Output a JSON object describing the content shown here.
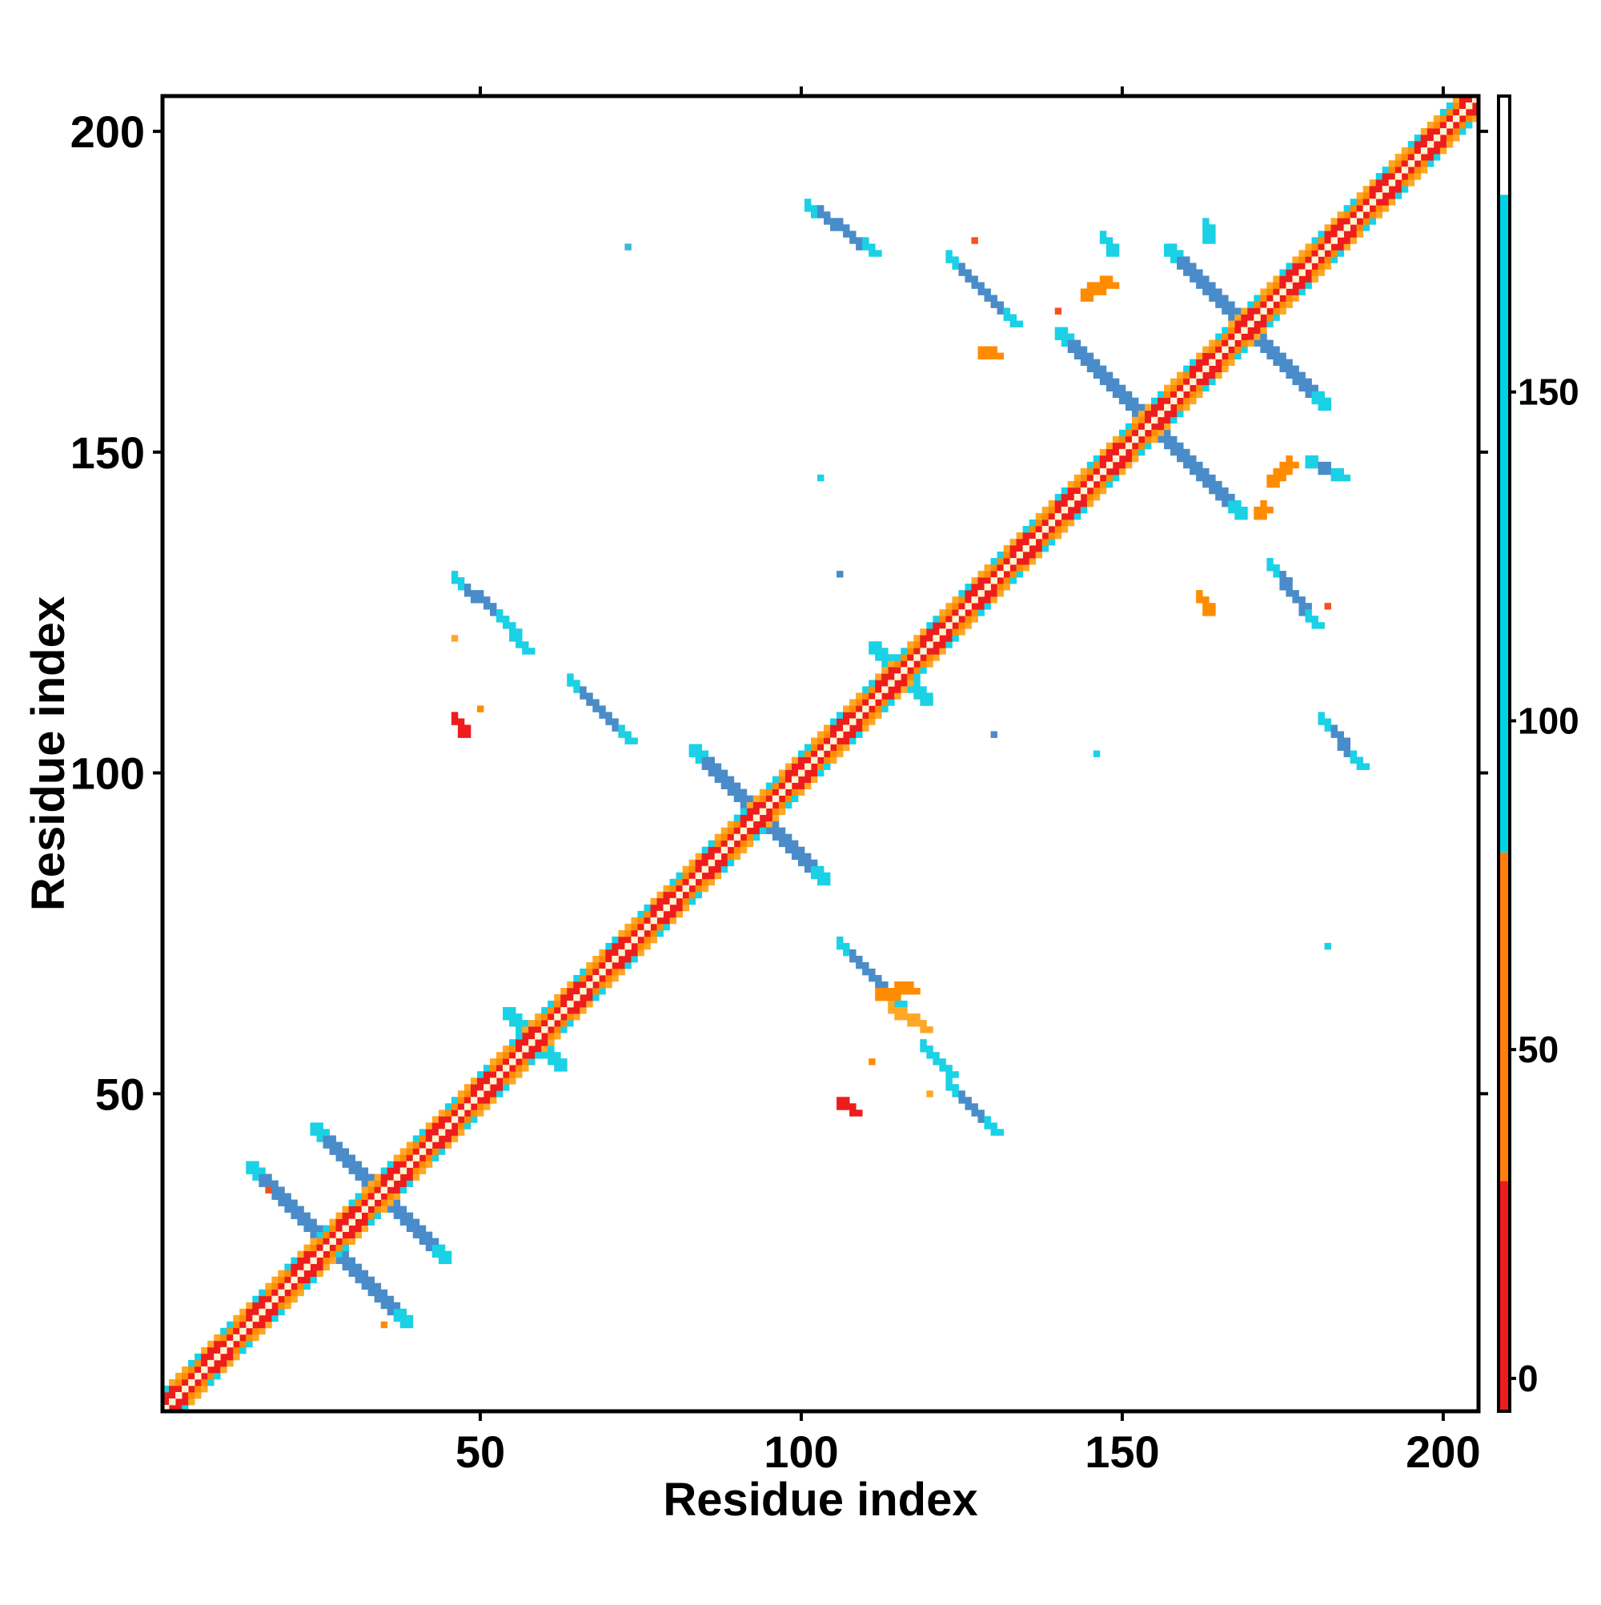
{
  "chart_data": {
    "type": "heatmap",
    "title": "",
    "xlabel": "Residue index",
    "ylabel": "Residue index",
    "xlim": [
      1,
      205
    ],
    "ylim": [
      1,
      205
    ],
    "xticks": [
      "50",
      "100",
      "150",
      "200"
    ],
    "yticks": [
      "50",
      "100",
      "150",
      "200"
    ],
    "xtick_values": [
      50,
      100,
      150,
      200
    ],
    "ytick_values": [
      50,
      100,
      150,
      200
    ],
    "colorbar": {
      "range": [
        -5,
        195
      ],
      "ticks": [
        "0",
        "50",
        "100",
        "150"
      ],
      "tick_values": [
        0,
        50,
        100,
        150
      ],
      "bands": [
        {
          "from": -5,
          "to": 30,
          "color": "#ee1c1c"
        },
        {
          "from": 30,
          "to": 80,
          "color": "#ff7f0e"
        },
        {
          "from": 80,
          "to": 180,
          "color": "#00d2e6"
        },
        {
          "from": 180,
          "to": 195,
          "color": "#ffffff"
        }
      ],
      "colors": {
        "red": "#ee1c1c",
        "orange_red": "#f4511e",
        "orange": "#ff8c00",
        "light_orange": "#ffa726",
        "cyan": "#1ad1e5",
        "light_blue": "#3fb6dc",
        "steel_blue": "#4a8cc9",
        "diagonal": "#fff2d0"
      }
    },
    "diagonal": {
      "from": 1,
      "to": 205,
      "band_colors": [
        "red",
        "orange",
        "light_orange"
      ]
    },
    "regions": [
      {
        "type": "antiparallel",
        "center": [
          26,
          26
        ],
        "half_length": 12,
        "value": 140
      },
      {
        "type": "antiparallel",
        "center": [
          34,
          34
        ],
        "half_length": 10,
        "value": 140
      },
      {
        "type": "antiparallel",
        "center": [
          93,
          93
        ],
        "half_length": 10,
        "value": 140
      },
      {
        "type": "antiparallel",
        "center": [
          154,
          154
        ],
        "half_length": 14,
        "value": 140
      },
      {
        "type": "antiparallel",
        "center": [
          169,
          169
        ],
        "half_length": 12,
        "value": 140
      },
      {
        "type": "antiparallel",
        "center": [
          115,
          115
        ],
        "half_length": 4,
        "value": 110
      },
      {
        "type": "antiparallel",
        "center": [
          58,
          58
        ],
        "half_length": 4,
        "value": 110
      },
      {
        "type": "segment",
        "from": [
          46,
          130
        ],
        "to": [
          54,
          123
        ],
        "value": 140
      },
      {
        "type": "segment",
        "from": [
          53,
          124
        ],
        "to": [
          57,
          119
        ],
        "value": 110
      },
      {
        "type": "segment",
        "from": [
          64,
          114
        ],
        "to": [
          73,
          105
        ],
        "value": 140
      },
      {
        "type": "segment",
        "from": [
          101,
          188
        ],
        "to": [
          111,
          181
        ],
        "value": 140
      },
      {
        "type": "segment",
        "from": [
          123,
          180
        ],
        "to": [
          133,
          170
        ],
        "value": 140
      },
      {
        "type": "segment",
        "from": [
          173,
          132
        ],
        "to": [
          180,
          123
        ],
        "value": 140
      },
      {
        "type": "segment",
        "from": [
          181,
          108
        ],
        "to": [
          187,
          101
        ],
        "value": 140
      },
      {
        "type": "segment",
        "from": [
          106,
          73
        ],
        "to": [
          115,
          64
        ],
        "value": 140
      },
      {
        "type": "segment",
        "from": [
          119,
          57
        ],
        "to": [
          123,
          53
        ],
        "value": 110
      },
      {
        "type": "segment",
        "from": [
          123,
          51
        ],
        "to": [
          130,
          44
        ],
        "value": 140
      },
      {
        "type": "segment",
        "from": [
          147,
          183
        ],
        "to": [
          148,
          181
        ],
        "value": 130
      },
      {
        "type": "segment",
        "from": [
          179,
          148
        ],
        "to": [
          184,
          146
        ],
        "value": 140
      },
      {
        "type": "segment",
        "from": [
          163,
          185
        ],
        "to": [
          163,
          183
        ],
        "value": 130
      },
      {
        "type": "segment",
        "from": [
          112,
          65
        ],
        "to": [
          117,
          66
        ],
        "value": 50
      },
      {
        "type": "segment",
        "from": [
          176,
          148
        ],
        "to": [
          173,
          145
        ],
        "value": 40
      },
      {
        "type": "segment",
        "from": [
          172,
          141
        ],
        "to": [
          171,
          140
        ],
        "value": 40
      },
      {
        "type": "segment",
        "from": [
          119,
          60
        ],
        "to": [
          114,
          63
        ],
        "value": 60
      },
      {
        "type": "segment",
        "from": [
          144,
          174
        ],
        "to": [
          148,
          176
        ],
        "value": 50
      },
      {
        "type": "segment",
        "from": [
          162,
          127
        ],
        "to": [
          163,
          125
        ],
        "value": 45
      },
      {
        "type": "segment",
        "from": [
          46,
          108
        ],
        "to": [
          47,
          106
        ],
        "value": 10
      },
      {
        "type": "segment",
        "from": [
          106,
          48
        ],
        "to": [
          108,
          47
        ],
        "value": 10
      },
      {
        "type": "segment",
        "from": [
          128,
          165
        ],
        "to": [
          130,
          165
        ],
        "value": 45
      },
      {
        "type": "point",
        "at": [
          73,
          182
        ],
        "value": 130
      },
      {
        "type": "point",
        "at": [
          103,
          146
        ],
        "value": 110
      },
      {
        "type": "point",
        "at": [
          106,
          131
        ],
        "value": 140
      },
      {
        "type": "point",
        "at": [
          146,
          103
        ],
        "value": 110
      },
      {
        "type": "point",
        "at": [
          130,
          106
        ],
        "value": 140
      },
      {
        "type": "point",
        "at": [
          182,
          73
        ],
        "value": 110
      },
      {
        "type": "point",
        "at": [
          50,
          110
        ],
        "value": 45
      },
      {
        "type": "point",
        "at": [
          111,
          55
        ],
        "value": 45
      },
      {
        "type": "point",
        "at": [
          17,
          35
        ],
        "value": 20
      },
      {
        "type": "point",
        "at": [
          35,
          14
        ],
        "value": 40
      },
      {
        "type": "point",
        "at": [
          127,
          183
        ],
        "value": 20
      },
      {
        "type": "point",
        "at": [
          182,
          126
        ],
        "value": 20
      },
      {
        "type": "point",
        "at": [
          120,
          50
        ],
        "value": 60
      },
      {
        "type": "point",
        "at": [
          140,
          172
        ],
        "value": 20
      },
      {
        "type": "point",
        "at": [
          46,
          121
        ],
        "value": 70
      }
    ]
  }
}
